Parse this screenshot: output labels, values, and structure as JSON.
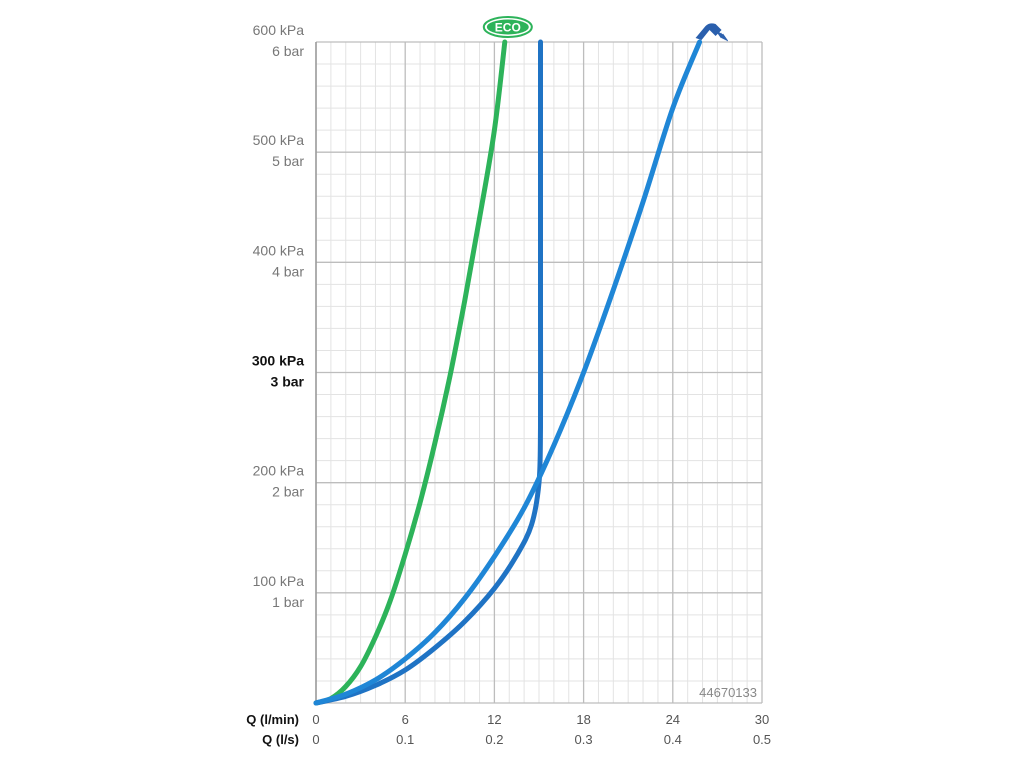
{
  "chart_data": {
    "type": "line",
    "xlabel_flow_lmin": "Q (l/min)",
    "xlabel_flow_ls": "Q (l/s)",
    "x_ticks_lmin": [
      "0",
      "6",
      "12",
      "18",
      "24",
      "30"
    ],
    "x_ticks_ls": [
      "0",
      "0.1",
      "0.2",
      "0.3",
      "0.4",
      "0.5"
    ],
    "y_ticks": [
      {
        "value": 100,
        "kpa": "100 kPa",
        "bar": "1 bar",
        "bold": false
      },
      {
        "value": 200,
        "kpa": "200 kPa",
        "bar": "2 bar",
        "bold": false
      },
      {
        "value": 300,
        "kpa": "300 kPa",
        "bar": "3 bar",
        "bold": true
      },
      {
        "value": 400,
        "kpa": "400 kPa",
        "bar": "4 bar",
        "bold": false
      },
      {
        "value": 500,
        "kpa": "500 kPa",
        "bar": "5 bar",
        "bold": false
      },
      {
        "value": 600,
        "kpa": "600 kPa",
        "bar": "6 bar",
        "bold": false
      }
    ],
    "xlim": [
      0,
      30
    ],
    "ylim": [
      0,
      600
    ],
    "grid": true,
    "product_code": "44670133",
    "eco_badge": "ECO",
    "series": [
      {
        "key": "eco",
        "color": "#2db35a",
        "marker": "eco-badge",
        "x": [
          0,
          1,
          2,
          3,
          4,
          5,
          6,
          7,
          8,
          9,
          10,
          11,
          12,
          12.7
        ],
        "y": [
          0,
          4,
          15,
          33,
          60,
          93,
          135,
          182,
          236,
          296,
          365,
          440,
          520,
          600
        ]
      },
      {
        "key": "flow-limited",
        "color": "#1f73c4",
        "marker": "none",
        "x": [
          0,
          2,
          4,
          6,
          8,
          10,
          12,
          13.5,
          14.5,
          15,
          15.1,
          15.1,
          15.1,
          15.1
        ],
        "y": [
          0,
          6,
          16,
          30,
          50,
          74,
          104,
          134,
          162,
          200,
          250,
          350,
          450,
          600
        ]
      },
      {
        "key": "hand-shower",
        "color": "#1f86d6",
        "marker": "hand-shower",
        "x": [
          0,
          2,
          4,
          6,
          8,
          10,
          12,
          14,
          16,
          18,
          20,
          22,
          24,
          25.8
        ],
        "y": [
          0,
          8,
          21,
          40,
          64,
          95,
          133,
          177,
          234,
          300,
          375,
          455,
          540,
          600
        ]
      }
    ]
  }
}
